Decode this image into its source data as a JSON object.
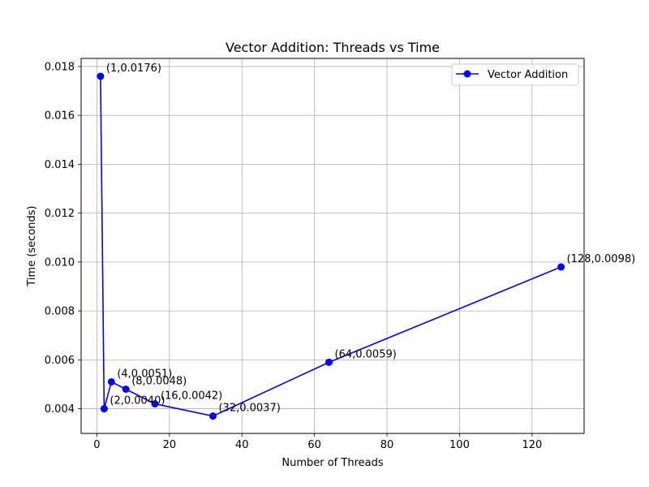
{
  "chart_data": {
    "type": "line",
    "title": "Vector Addition: Threads vs Time",
    "xlabel": "Number of Threads",
    "ylabel": "Time (seconds)",
    "xlim": [
      -4.35,
      134.35
    ],
    "ylim": [
      0.00299,
      0.01833
    ],
    "xticks": [
      0,
      20,
      40,
      60,
      80,
      100,
      120
    ],
    "yticks": [
      0.004,
      0.006,
      0.008,
      0.01,
      0.012,
      0.014,
      0.016,
      0.018
    ],
    "xtick_labels": [
      "0",
      "20",
      "40",
      "60",
      "80",
      "100",
      "120"
    ],
    "ytick_labels": [
      "0.004",
      "0.006",
      "0.008",
      "0.010",
      "0.012",
      "0.014",
      "0.016",
      "0.018"
    ],
    "grid": true,
    "legend_position": "upper-right",
    "series": [
      {
        "name": "Vector Addition",
        "color": "#0000ff",
        "marker": "circle",
        "x": [
          1,
          2,
          4,
          8,
          16,
          32,
          64,
          128
        ],
        "y": [
          0.0176,
          0.004,
          0.0051,
          0.0048,
          0.0042,
          0.0037,
          0.0059,
          0.0098
        ],
        "labels": [
          "(1,0.0176)",
          "(2,0.0040)",
          "(4,0.0051)",
          "(8,0.0048)",
          "(16,0.0042)",
          "(32,0.0037)",
          "(64,0.0059)",
          "(128,0.0098)"
        ]
      }
    ]
  }
}
